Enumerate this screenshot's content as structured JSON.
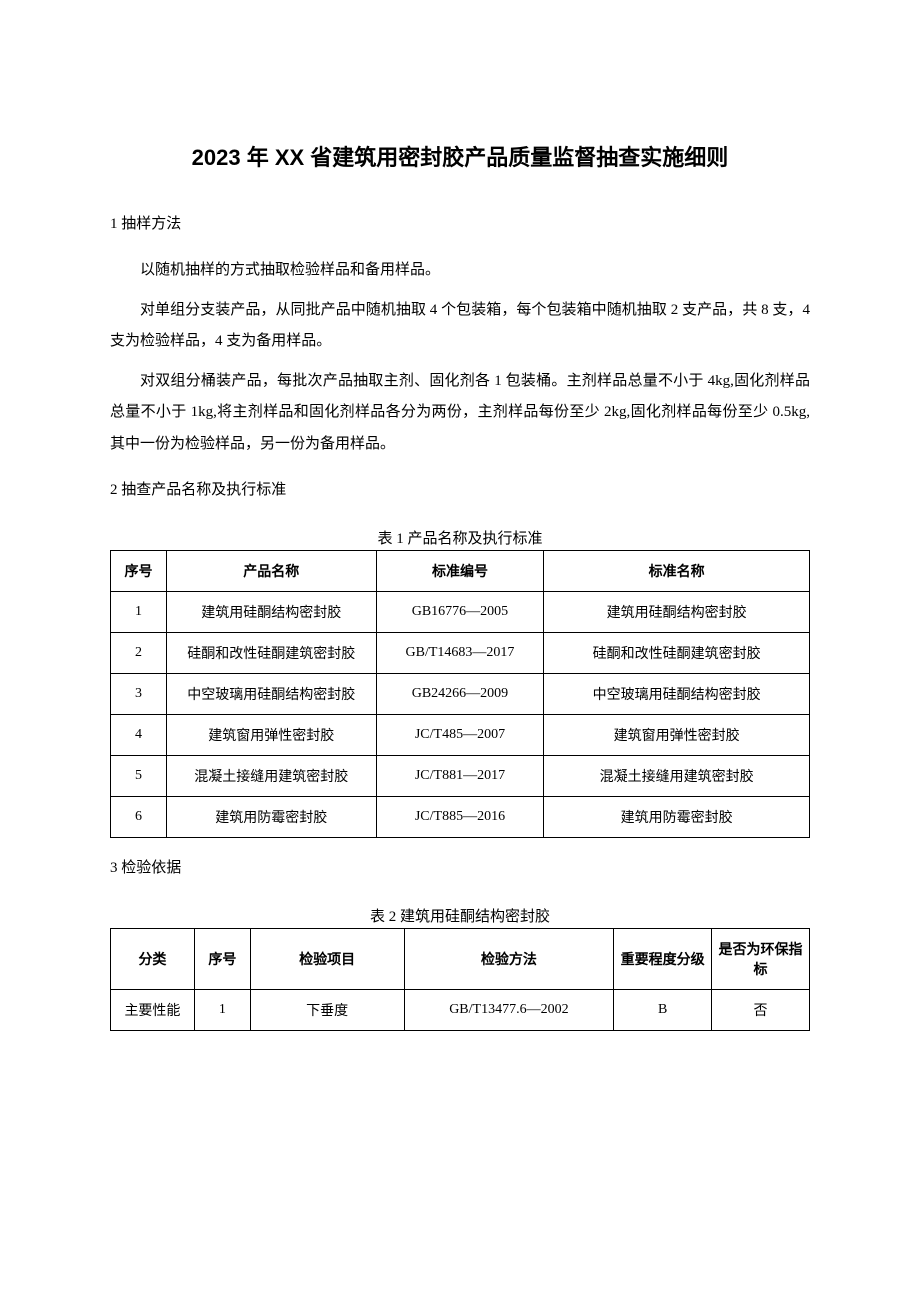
{
  "title": "2023 年 XX 省建筑用密封胶产品质量监督抽查实施细则",
  "section1": {
    "heading": "1 抽样方法",
    "p1": "以随机抽样的方式抽取检验样品和备用样品。",
    "p2": "对单组分支装产品，从同批产品中随机抽取 4 个包装箱，每个包装箱中随机抽取 2 支产品，共 8 支，4 支为检验样品，4 支为备用样品。",
    "p3": "对双组分桶装产品，每批次产品抽取主剂、固化剂各 1 包装桶。主剂样品总量不小于 4kg,固化剂样品总量不小于 1kg,将主剂样品和固化剂样品各分为两份，主剂样品每份至少 2kg,固化剂样品每份至少 0.5kg,其中一份为检验样品，另一份为备用样品。"
  },
  "section2": {
    "heading": "2 抽查产品名称及执行标准",
    "table_caption": "表 1 产品名称及执行标准",
    "columns": [
      "序号",
      "产品名称",
      "标准编号",
      "标准名称"
    ],
    "rows": [
      [
        "1",
        "建筑用硅酮结构密封胶",
        "GB16776—2005",
        "建筑用硅酮结构密封胶"
      ],
      [
        "2",
        "硅酮和改性硅酮建筑密封胶",
        "GB/T14683—2017",
        "硅酮和改性硅酮建筑密封胶"
      ],
      [
        "3",
        "中空玻璃用硅酮结构密封胶",
        "GB24266—2009",
        "中空玻璃用硅酮结构密封胶"
      ],
      [
        "4",
        "建筑窗用弹性密封胶",
        "JC/T485—2007",
        "建筑窗用弹性密封胶"
      ],
      [
        "5",
        "混凝土接缝用建筑密封胶",
        "JC/T881—2017",
        "混凝土接缝用建筑密封胶"
      ],
      [
        "6",
        "建筑用防霉密封胶",
        "JC/T885—2016",
        "建筑用防霉密封胶"
      ]
    ]
  },
  "section3": {
    "heading": "3 检验依据",
    "table_caption": "表 2 建筑用硅酮结构密封胶",
    "columns": [
      "分类",
      "序号",
      "检验项目",
      "检验方法",
      "重要程度分级",
      "是否为环保指标"
    ],
    "rows": [
      [
        "主要性能",
        "1",
        "下垂度",
        "GB/T13477.6—2002",
        "B",
        "否"
      ]
    ]
  }
}
